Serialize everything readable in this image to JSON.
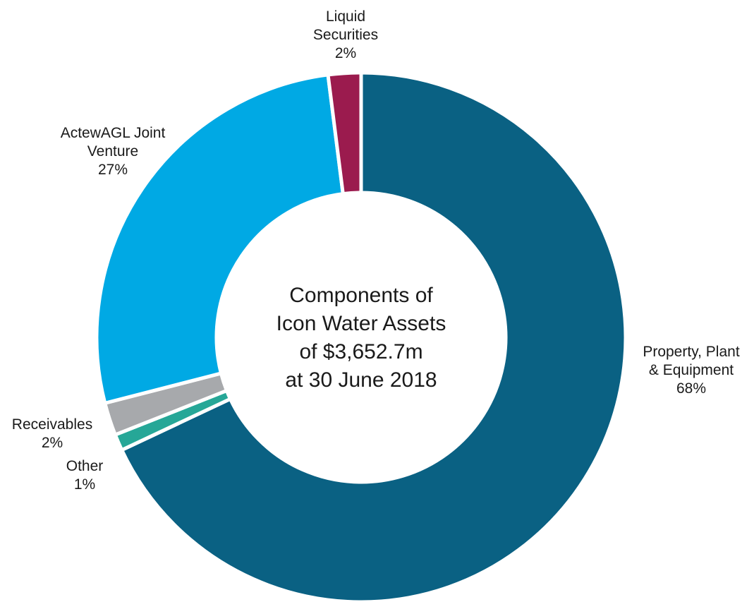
{
  "chart_data": {
    "type": "pie",
    "title_lines": [
      "Components of",
      "Icon Water Assets",
      "of $3,652.7m",
      "at 30 June 2018"
    ],
    "slices": [
      {
        "key": "ppe",
        "label_lines": [
          "Property, Plant",
          "& Equipment"
        ],
        "value_label": "68%",
        "value": 68,
        "color": "#0a6183"
      },
      {
        "key": "other",
        "label_lines": [
          "Other"
        ],
        "value_label": "1%",
        "value": 1,
        "color": "#26a797"
      },
      {
        "key": "receivables",
        "label_lines": [
          "Receivables"
        ],
        "value_label": "2%",
        "value": 2,
        "color": "#a7a9ac"
      },
      {
        "key": "actewagl",
        "label_lines": [
          "ActewAGL Joint",
          "Venture"
        ],
        "value_label": "27%",
        "value": 27,
        "color": "#00a9e4"
      },
      {
        "key": "liquid",
        "label_lines": [
          "Liquid",
          "Securities"
        ],
        "value_label": "2%",
        "value": 2,
        "color": "#9b1b4e"
      }
    ]
  }
}
